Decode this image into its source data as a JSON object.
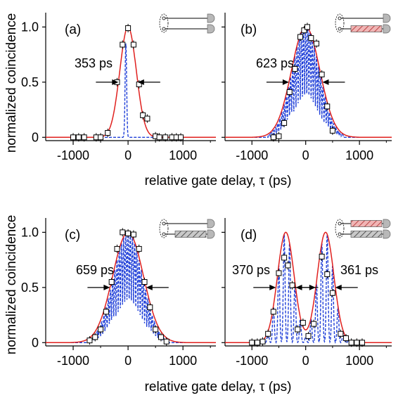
{
  "ylabel": "normalized coincidence",
  "xlabel": "relative gate delay, τ (ps)",
  "chart_data": [
    {
      "type": "scatter",
      "panel": "(a)",
      "xlim": [
        -1500,
        1600
      ],
      "ylim": [
        -0.03,
        1.13
      ],
      "xticks": [
        {
          "v": -1000,
          "label": "-1000"
        },
        {
          "v": 0,
          "label": "0"
        },
        {
          "v": 1000,
          "label": "1000"
        }
      ],
      "yticks": [
        {
          "v": 0,
          "label": "0"
        },
        {
          "v": 0.5,
          "label": "0.5"
        },
        {
          "v": 1.0,
          "label": "1.0"
        }
      ],
      "fit": {
        "kind": "gauss",
        "center": 0,
        "fwhm": 353
      },
      "calc": {
        "kind": "single",
        "center": -40,
        "height": 0.85,
        "width": 14
      },
      "fwhm_arrows": [
        {
          "label": "353 ps",
          "y": 0.5,
          "left": -176,
          "right": 176
        }
      ],
      "points": [
        {
          "x": -1000,
          "y": 0.0
        },
        {
          "x": -900,
          "y": 0.0
        },
        {
          "x": -800,
          "y": 0.0
        },
        {
          "x": -580,
          "y": 0.0
        },
        {
          "x": -500,
          "y": 0.0
        },
        {
          "x": -370,
          "y": 0.04
        },
        {
          "x": -200,
          "y": 0.5
        },
        {
          "x": -100,
          "y": 0.84
        },
        {
          "x": 0,
          "y": 0.99
        },
        {
          "x": 100,
          "y": 0.84
        },
        {
          "x": 200,
          "y": 0.48
        },
        {
          "x": 270,
          "y": 0.2
        },
        {
          "x": 350,
          "y": 0.17
        },
        {
          "x": 500,
          "y": 0.01
        },
        {
          "x": 570,
          "y": 0.0
        },
        {
          "x": 680,
          "y": 0.0
        },
        {
          "x": 800,
          "y": 0.0
        },
        {
          "x": 880,
          "y": 0.0
        },
        {
          "x": 960,
          "y": 0.0
        }
      ]
    },
    {
      "type": "scatter",
      "panel": "(b)",
      "xlim": [
        -1500,
        1600
      ],
      "ylim": [
        -0.03,
        1.13
      ],
      "xticks": [
        {
          "v": -1000,
          "label": "-1000"
        },
        {
          "v": 0,
          "label": "0"
        },
        {
          "v": 1000,
          "label": "1000"
        }
      ],
      "yticks": [
        {
          "v": 0,
          "label": "0"
        },
        {
          "v": 0.5,
          "label": "0.5"
        },
        {
          "v": 1.0,
          "label": "1.0"
        }
      ],
      "fit": {
        "kind": "gauss",
        "center": 0,
        "fwhm": 623
      },
      "calc": {
        "kind": "comb",
        "spacing": 40,
        "env_fwhm": 600,
        "height": 1.0,
        "width": 14,
        "range": [
          -700,
          700
        ]
      },
      "fwhm_arrows": [
        {
          "label": "623 ps",
          "y": 0.5,
          "left": -311,
          "right": 311
        }
      ],
      "points": [
        {
          "x": -600,
          "y": 0.0
        },
        {
          "x": -500,
          "y": 0.01
        },
        {
          "x": -400,
          "y": 0.13
        },
        {
          "x": -300,
          "y": 0.41
        },
        {
          "x": -200,
          "y": 0.62
        },
        {
          "x": -100,
          "y": 0.91
        },
        {
          "x": -30,
          "y": 0.97
        },
        {
          "x": 30,
          "y": 1.0
        },
        {
          "x": 100,
          "y": 0.9
        },
        {
          "x": 200,
          "y": 0.85
        },
        {
          "x": 300,
          "y": 0.57
        },
        {
          "x": 400,
          "y": 0.28
        },
        {
          "x": 500,
          "y": 0.06
        }
      ]
    },
    {
      "type": "scatter",
      "panel": "(c)",
      "xlim": [
        -1500,
        1600
      ],
      "ylim": [
        -0.03,
        1.13
      ],
      "xticks": [
        {
          "v": -1000,
          "label": "-1000"
        },
        {
          "v": 0,
          "label": "0"
        },
        {
          "v": 1000,
          "label": "1000"
        }
      ],
      "yticks": [
        {
          "v": 0,
          "label": "0"
        },
        {
          "v": 0.5,
          "label": "0.5"
        },
        {
          "v": 1.0,
          "label": "1.0"
        }
      ],
      "fit": {
        "kind": "gauss",
        "center": 0,
        "fwhm": 659
      },
      "calc": {
        "kind": "comb",
        "spacing": 40,
        "env_fwhm": 620,
        "height": 1.0,
        "width": 14,
        "range": [
          -700,
          700
        ]
      },
      "fwhm_arrows": [
        {
          "label": "659 ps",
          "y": 0.5,
          "left": -329,
          "right": 329
        }
      ],
      "points": [
        {
          "x": -700,
          "y": 0.02
        },
        {
          "x": -600,
          "y": 0.05
        },
        {
          "x": -500,
          "y": 0.12
        },
        {
          "x": -400,
          "y": 0.28
        },
        {
          "x": -300,
          "y": 0.55
        },
        {
          "x": -200,
          "y": 0.85
        },
        {
          "x": -100,
          "y": 1.0
        },
        {
          "x": 0,
          "y": 0.99
        },
        {
          "x": 100,
          "y": 0.98
        },
        {
          "x": 200,
          "y": 0.85
        },
        {
          "x": 300,
          "y": 0.55
        },
        {
          "x": 400,
          "y": 0.32
        },
        {
          "x": 500,
          "y": 0.12
        },
        {
          "x": 600,
          "y": 0.05
        },
        {
          "x": 700,
          "y": 0.01
        }
      ]
    },
    {
      "type": "scatter",
      "panel": "(d)",
      "xlim": [
        -1500,
        1600
      ],
      "ylim": [
        -0.03,
        1.13
      ],
      "xticks": [
        {
          "v": -1000,
          "label": "-1000"
        },
        {
          "v": 0,
          "label": "0"
        },
        {
          "v": 1000,
          "label": "1000"
        }
      ],
      "yticks": [
        {
          "v": 0,
          "label": "0"
        },
        {
          "v": 0.5,
          "label": "0.5"
        },
        {
          "v": 1.0,
          "label": "1.0"
        }
      ],
      "fit": {
        "kind": "double",
        "centers": [
          -370,
          370
        ],
        "fwhm": 365
      },
      "calc": {
        "kind": "double_comb",
        "spacing": 100,
        "height": 1.0,
        "width": 16
      },
      "fwhm_arrows": [
        {
          "label": "370 ps",
          "y": 0.5,
          "left": -555,
          "right": -185
        },
        {
          "label": "361 ps",
          "y": 0.5,
          "left": 185,
          "right": 550
        }
      ],
      "points": [
        {
          "x": -1000,
          "y": 0.0
        },
        {
          "x": -900,
          "y": 0.0
        },
        {
          "x": -800,
          "y": 0.01
        },
        {
          "x": -700,
          "y": 0.08
        },
        {
          "x": -600,
          "y": 0.28
        },
        {
          "x": -500,
          "y": 0.63
        },
        {
          "x": -400,
          "y": 0.77
        },
        {
          "x": -330,
          "y": 0.7
        },
        {
          "x": -250,
          "y": 0.52
        },
        {
          "x": -150,
          "y": 0.12
        },
        {
          "x": -50,
          "y": 0.18
        },
        {
          "x": 50,
          "y": 0.06
        },
        {
          "x": 150,
          "y": 0.17
        },
        {
          "x": 300,
          "y": 0.78
        },
        {
          "x": 400,
          "y": 0.62
        },
        {
          "x": 500,
          "y": 0.45
        },
        {
          "x": 650,
          "y": 0.08
        },
        {
          "x": 750,
          "y": 0.04
        },
        {
          "x": 850,
          "y": 0.0
        },
        {
          "x": 950,
          "y": 0.0
        },
        {
          "x": 1050,
          "y": 0.0
        }
      ]
    }
  ],
  "insets": [
    {
      "panel": "(a)",
      "lines": [
        "plain",
        "plain"
      ]
    },
    {
      "panel": "(b)",
      "lines": [
        "plain",
        "red-hatched"
      ]
    },
    {
      "panel": "(c)",
      "lines": [
        "plain",
        "gray-hatched"
      ]
    },
    {
      "panel": "(d)",
      "lines": [
        "red-hatched",
        "gray-hatched"
      ]
    }
  ],
  "colors": {
    "fit": "#e0201e",
    "calc": "#1f3fd8",
    "points": "#000000",
    "red_hatch": "#e07a7a",
    "gray_hatch": "#9a9a9a",
    "detector": "#b8b8b8"
  }
}
